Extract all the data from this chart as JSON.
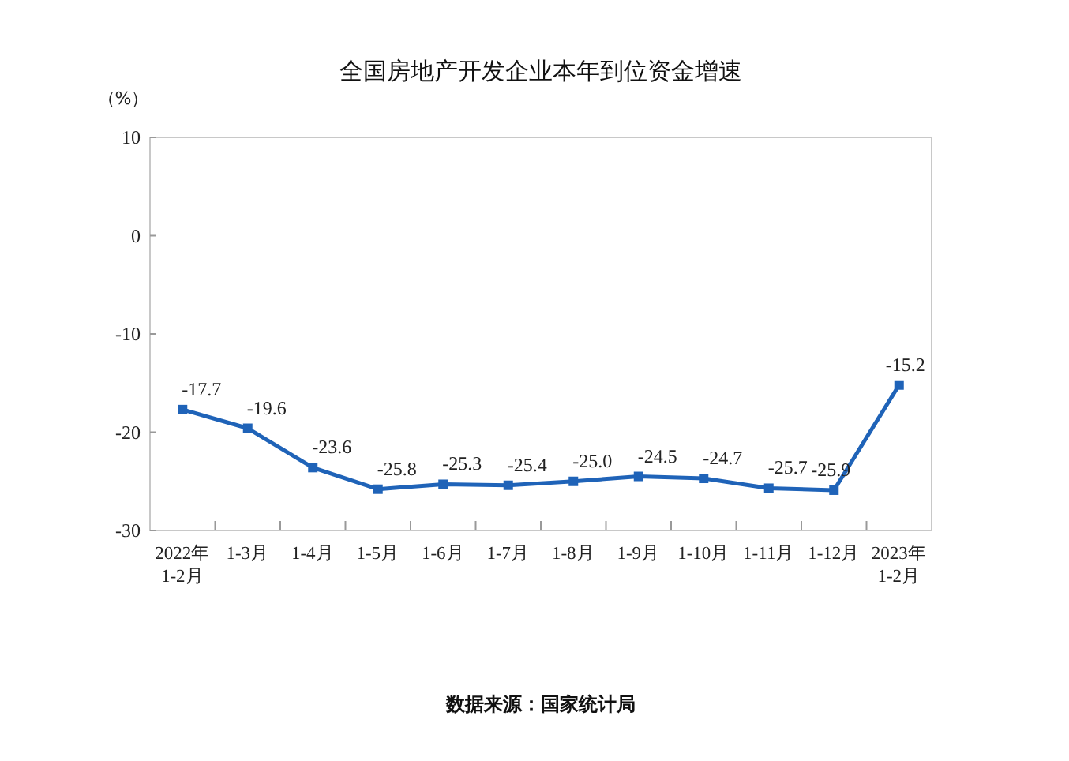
{
  "chart_data": {
    "type": "line",
    "title": "全国房地产开发企业本年到位资金增速",
    "ylabel": "（%）",
    "categories": [
      "2022年\n1-2月",
      "1-3月",
      "1-4月",
      "1-5月",
      "1-6月",
      "1-7月",
      "1-8月",
      "1-9月",
      "1-10月",
      "1-11月",
      "1-12月",
      "2023年\n1-2月"
    ],
    "series": [
      {
        "color": "#1f63b8",
        "values": [
          -17.7,
          -19.6,
          -23.6,
          -25.8,
          -25.3,
          -25.4,
          -25.0,
          -24.5,
          -24.7,
          -25.7,
          -25.9,
          -15.2
        ],
        "value_labels": [
          "-17.7",
          "-19.6",
          "-23.6",
          "-25.8",
          "-25.3",
          "-25.4",
          "-25.0",
          "-24.5",
          "-24.7",
          "-25.7",
          "-25.9",
          "-15.2"
        ]
      }
    ],
    "ylim": [
      -30,
      10
    ],
    "yticks": [
      -30,
      -20,
      -10,
      0,
      10
    ],
    "marker": "square",
    "line_style": "solid",
    "grid": false,
    "annotations": [
      "数据来源：国家统计局"
    ]
  }
}
